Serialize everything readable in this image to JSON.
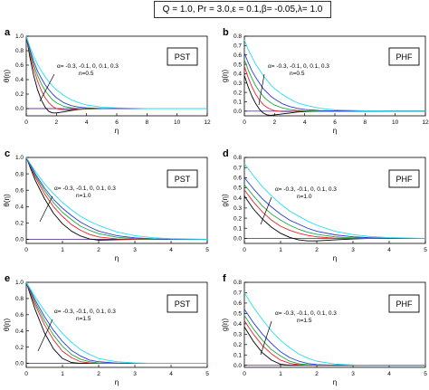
{
  "header": {
    "params": "Q = 1.0, Pr = 3.0,ε = 0.1,β= -0.05,λ= 1.0"
  },
  "colors": {
    "series": [
      "#000000",
      "#e8242a",
      "#22a544",
      "#2b3bd4",
      "#28dcec"
    ],
    "zero_line": "#6a3d9a"
  },
  "chart_data": [
    {
      "type": "line",
      "panel_label": "a",
      "tag": "PST",
      "xlabel": "η",
      "ylabel": "θ(η)",
      "xlim": [
        0,
        12
      ],
      "ylim": [
        -0.1,
        1.0
      ],
      "xticks": [
        "0",
        "2",
        "4",
        "6",
        "8",
        "10",
        "12"
      ],
      "yticks": [
        "0.0",
        "0.2",
        "0.4",
        "0.6",
        "0.8",
        "1.0"
      ],
      "annotation": [
        "α= -0.3, -0.1, 0, 0.1, 0.3",
        "n=0.5"
      ],
      "x": [
        0,
        0.25,
        0.5,
        0.75,
        1,
        1.25,
        1.5,
        1.75,
        2,
        2.5,
        3,
        3.5,
        4,
        5,
        6,
        8,
        10,
        12
      ],
      "series": [
        {
          "values": [
            1.0,
            0.7,
            0.45,
            0.26,
            0.12,
            0.02,
            -0.04,
            -0.06,
            -0.06,
            -0.045,
            -0.025,
            -0.012,
            -0.005,
            0.0,
            0.0,
            0.0,
            0.0,
            0.0
          ]
        },
        {
          "values": [
            1.0,
            0.75,
            0.55,
            0.38,
            0.25,
            0.15,
            0.08,
            0.03,
            0.0,
            -0.02,
            -0.015,
            -0.008,
            -0.003,
            0.0,
            0.0,
            0.0,
            0.0,
            0.0
          ]
        },
        {
          "values": [
            1.0,
            0.78,
            0.6,
            0.46,
            0.34,
            0.25,
            0.18,
            0.12,
            0.08,
            0.03,
            0.01,
            0.0,
            0.0,
            0.0,
            0.0,
            0.0,
            0.0,
            0.0
          ]
        },
        {
          "values": [
            1.0,
            0.81,
            0.65,
            0.52,
            0.42,
            0.33,
            0.26,
            0.2,
            0.15,
            0.08,
            0.04,
            0.02,
            0.01,
            0.0,
            0.0,
            0.0,
            0.0,
            0.0
          ]
        },
        {
          "values": [
            1.0,
            0.85,
            0.72,
            0.61,
            0.52,
            0.44,
            0.37,
            0.31,
            0.26,
            0.18,
            0.12,
            0.08,
            0.05,
            0.02,
            0.01,
            0.0,
            0.0,
            0.0
          ]
        }
      ]
    },
    {
      "type": "line",
      "panel_label": "b",
      "tag": "PHF",
      "xlabel": "η",
      "ylabel": "g(η)",
      "xlim": [
        0,
        12
      ],
      "ylim": [
        -0.05,
        0.8
      ],
      "xticks": [
        "0",
        "2",
        "4",
        "6",
        "8",
        "10",
        "12"
      ],
      "yticks": [
        "0.0",
        "0.1",
        "0.2",
        "0.3",
        "0.4",
        "0.5",
        "0.6",
        "0.7",
        "0.8"
      ],
      "annotation": [
        "α= -0.3, -0.1, 0, 0.1, 0.3",
        "n=0.5"
      ],
      "x": [
        0,
        0.25,
        0.5,
        0.75,
        1,
        1.25,
        1.5,
        1.75,
        2,
        2.5,
        3,
        3.5,
        4,
        5,
        6,
        8,
        10,
        12
      ],
      "series": [
        {
          "values": [
            0.38,
            0.26,
            0.16,
            0.08,
            0.02,
            -0.02,
            -0.04,
            -0.045,
            -0.04,
            -0.03,
            -0.02,
            -0.01,
            -0.005,
            0.0,
            0.0,
            0.0,
            0.0,
            0.0
          ]
        },
        {
          "values": [
            0.48,
            0.36,
            0.26,
            0.18,
            0.12,
            0.07,
            0.04,
            0.02,
            0.005,
            -0.005,
            -0.005,
            0.0,
            0.0,
            0.0,
            0.0,
            0.0,
            0.0,
            0.0
          ]
        },
        {
          "values": [
            0.55,
            0.44,
            0.35,
            0.27,
            0.21,
            0.16,
            0.12,
            0.09,
            0.065,
            0.035,
            0.018,
            0.009,
            0.004,
            0.0,
            0.0,
            0.0,
            0.0,
            0.0
          ]
        },
        {
          "values": [
            0.62,
            0.52,
            0.43,
            0.36,
            0.3,
            0.24,
            0.2,
            0.16,
            0.13,
            0.08,
            0.05,
            0.03,
            0.018,
            0.006,
            0.002,
            0.0,
            0.0,
            0.0
          ]
        },
        {
          "values": [
            0.76,
            0.66,
            0.58,
            0.5,
            0.44,
            0.38,
            0.33,
            0.28,
            0.24,
            0.18,
            0.13,
            0.09,
            0.065,
            0.03,
            0.014,
            0.003,
            0.0,
            0.0
          ]
        }
      ]
    },
    {
      "type": "line",
      "panel_label": "c",
      "tag": "PST",
      "xlabel": "η",
      "ylabel": "θ(η)",
      "xlim": [
        0,
        5
      ],
      "ylim": [
        -0.05,
        1.0
      ],
      "xticks": [
        "0",
        "1",
        "2",
        "3",
        "4",
        "5"
      ],
      "yticks": [
        "0.0",
        "0.2",
        "0.4",
        "0.6",
        "0.8",
        "1.0"
      ],
      "annotation": [
        "α= -0.3, -0.1, 0, 0.1, 0.3",
        "n=1.0"
      ],
      "x": [
        0,
        0.25,
        0.5,
        0.75,
        1,
        1.25,
        1.5,
        1.75,
        2,
        2.5,
        3,
        3.5,
        4,
        5
      ],
      "series": [
        {
          "values": [
            1.0,
            0.72,
            0.5,
            0.32,
            0.19,
            0.1,
            0.04,
            0.005,
            -0.01,
            -0.005,
            0.0,
            0.0,
            0.0,
            0.0
          ]
        },
        {
          "values": [
            1.0,
            0.76,
            0.56,
            0.4,
            0.28,
            0.18,
            0.11,
            0.06,
            0.03,
            0.005,
            0.0,
            0.0,
            0.0,
            0.0
          ]
        },
        {
          "values": [
            1.0,
            0.78,
            0.6,
            0.45,
            0.33,
            0.24,
            0.16,
            0.11,
            0.07,
            0.025,
            0.008,
            0.0,
            0.0,
            0.0
          ]
        },
        {
          "values": [
            1.0,
            0.8,
            0.63,
            0.49,
            0.38,
            0.29,
            0.21,
            0.15,
            0.1,
            0.045,
            0.018,
            0.006,
            0.0,
            0.0
          ]
        },
        {
          "values": [
            1.0,
            0.83,
            0.68,
            0.56,
            0.45,
            0.36,
            0.28,
            0.22,
            0.17,
            0.09,
            0.045,
            0.02,
            0.008,
            0.0
          ]
        }
      ]
    },
    {
      "type": "line",
      "panel_label": "d",
      "tag": "PHF",
      "xlabel": "η",
      "ylabel": "g(η)",
      "xlim": [
        0,
        5
      ],
      "ylim": [
        -0.05,
        0.8
      ],
      "xticks": [
        "0",
        "1",
        "2",
        "3",
        "4",
        "5"
      ],
      "yticks": [
        "0.0",
        "0.1",
        "0.2",
        "0.3",
        "0.4",
        "0.5",
        "0.6",
        "0.7",
        "0.8"
      ],
      "annotation": [
        "α= -0.3, -0.1, 0, 0.1, 0.3",
        "n=1.0"
      ],
      "x": [
        0,
        0.25,
        0.5,
        0.75,
        1,
        1.25,
        1.5,
        1.75,
        2,
        2.5,
        3,
        3.5,
        4,
        5
      ],
      "series": [
        {
          "values": [
            0.42,
            0.29,
            0.19,
            0.11,
            0.05,
            0.01,
            -0.015,
            -0.025,
            -0.025,
            -0.015,
            -0.006,
            0.0,
            0.0,
            0.0
          ]
        },
        {
          "values": [
            0.48,
            0.36,
            0.26,
            0.18,
            0.12,
            0.08,
            0.05,
            0.03,
            0.015,
            0.002,
            0.0,
            0.0,
            0.0,
            0.0
          ]
        },
        {
          "values": [
            0.53,
            0.42,
            0.32,
            0.24,
            0.18,
            0.13,
            0.09,
            0.06,
            0.04,
            0.015,
            0.005,
            0.0,
            0.0,
            0.0
          ]
        },
        {
          "values": [
            0.6,
            0.49,
            0.39,
            0.31,
            0.24,
            0.18,
            0.14,
            0.1,
            0.07,
            0.035,
            0.015,
            0.006,
            0.0,
            0.0
          ]
        },
        {
          "values": [
            0.74,
            0.62,
            0.51,
            0.42,
            0.34,
            0.27,
            0.22,
            0.17,
            0.13,
            0.07,
            0.037,
            0.018,
            0.008,
            0.0
          ]
        }
      ]
    },
    {
      "type": "line",
      "panel_label": "e",
      "tag": "PST",
      "xlabel": "η",
      "ylabel": "θ(η)",
      "xlim": [
        0,
        5
      ],
      "ylim": [
        -0.05,
        1.0
      ],
      "xticks": [
        "0",
        "1",
        "2",
        "3",
        "4",
        "5"
      ],
      "yticks": [
        "0.0",
        "0.2",
        "0.4",
        "0.6",
        "0.8",
        "1.0"
      ],
      "annotation": [
        "α= -0.3, -0.1, 0, 0.1, 0.3",
        "n=1.5"
      ],
      "x": [
        0,
        0.25,
        0.5,
        0.75,
        1,
        1.25,
        1.5,
        1.75,
        2,
        2.5,
        3,
        3.5,
        4,
        5
      ],
      "series": [
        {
          "values": [
            1.0,
            0.66,
            0.38,
            0.18,
            0.06,
            0.01,
            0.0,
            0.0,
            0.0,
            0.0,
            0.0,
            0.0,
            0.0,
            0.0
          ]
        },
        {
          "values": [
            1.0,
            0.72,
            0.48,
            0.29,
            0.15,
            0.07,
            0.02,
            0.005,
            0.0,
            0.0,
            0.0,
            0.0,
            0.0,
            0.0
          ]
        },
        {
          "values": [
            1.0,
            0.75,
            0.53,
            0.35,
            0.21,
            0.11,
            0.05,
            0.02,
            0.005,
            0.0,
            0.0,
            0.0,
            0.0,
            0.0
          ]
        },
        {
          "values": [
            1.0,
            0.78,
            0.58,
            0.41,
            0.27,
            0.16,
            0.09,
            0.04,
            0.02,
            0.003,
            0.0,
            0.0,
            0.0,
            0.0
          ]
        },
        {
          "values": [
            1.0,
            0.82,
            0.65,
            0.5,
            0.37,
            0.26,
            0.17,
            0.11,
            0.06,
            0.02,
            0.005,
            0.0,
            0.0,
            0.0
          ]
        }
      ]
    },
    {
      "type": "line",
      "panel_label": "f",
      "tag": "PHF",
      "xlabel": "η",
      "ylabel": "g(η)",
      "xlim": [
        0,
        5
      ],
      "ylim": [
        -0.02,
        0.8
      ],
      "xticks": [
        "0",
        "1",
        "2",
        "3",
        "4",
        "5"
      ],
      "yticks": [
        "0.0",
        "0.1",
        "0.2",
        "0.3",
        "0.4",
        "0.5",
        "0.6",
        "0.7",
        "0.8"
      ],
      "annotation": [
        "α= -0.3, -0.1, 0, 0.1, 0.3",
        "n=1.5"
      ],
      "x": [
        0,
        0.25,
        0.5,
        0.75,
        1,
        1.25,
        1.5,
        1.75,
        2,
        2.5,
        3,
        3.5,
        4,
        5
      ],
      "series": [
        {
          "values": [
            0.37,
            0.23,
            0.12,
            0.05,
            0.01,
            0.0,
            0.0,
            0.0,
            0.0,
            0.0,
            0.0,
            0.0,
            0.0,
            0.0
          ]
        },
        {
          "values": [
            0.43,
            0.3,
            0.19,
            0.11,
            0.05,
            0.02,
            0.005,
            0.0,
            0.0,
            0.0,
            0.0,
            0.0,
            0.0,
            0.0
          ]
        },
        {
          "values": [
            0.48,
            0.35,
            0.24,
            0.15,
            0.09,
            0.04,
            0.015,
            0.005,
            0.0,
            0.0,
            0.0,
            0.0,
            0.0,
            0.0
          ]
        },
        {
          "values": [
            0.54,
            0.41,
            0.3,
            0.21,
            0.13,
            0.075,
            0.04,
            0.018,
            0.007,
            0.0,
            0.0,
            0.0,
            0.0,
            0.0
          ]
        },
        {
          "values": [
            0.7,
            0.56,
            0.44,
            0.33,
            0.24,
            0.17,
            0.11,
            0.07,
            0.04,
            0.012,
            0.003,
            0.0,
            0.0,
            0.0
          ]
        }
      ]
    }
  ]
}
